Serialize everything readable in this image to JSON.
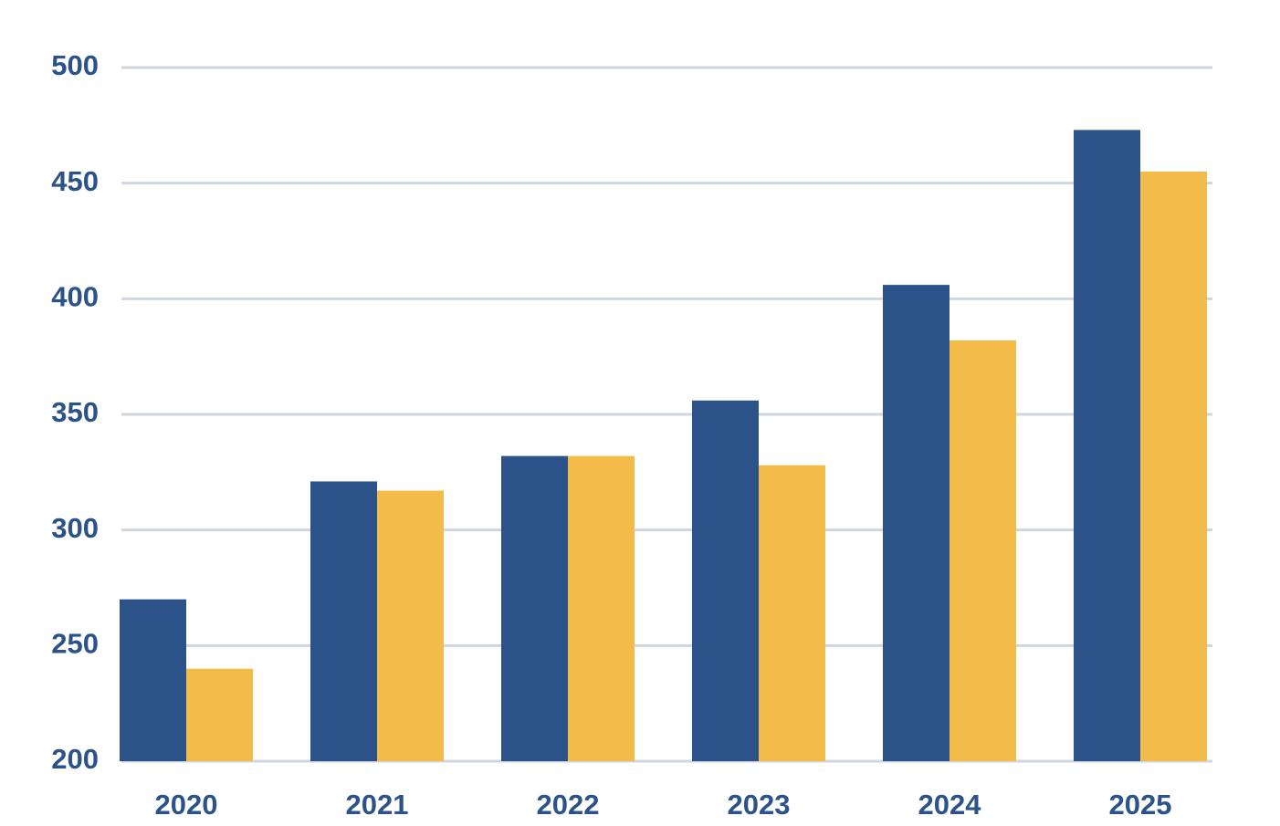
{
  "chart_data": {
    "type": "bar",
    "categories": [
      "2020",
      "2021",
      "2022",
      "2023",
      "2024",
      "2025"
    ],
    "series": [
      {
        "color": "#2b5389",
        "values": [
          270,
          321,
          332,
          356,
          406,
          473
        ]
      },
      {
        "color": "#f2bb4a",
        "values": [
          240,
          317,
          332,
          328,
          382,
          455
        ]
      }
    ],
    "ylim": [
      200,
      500
    ],
    "yticks": [
      200,
      250,
      300,
      350,
      400,
      450,
      500
    ],
    "grid": true
  }
}
